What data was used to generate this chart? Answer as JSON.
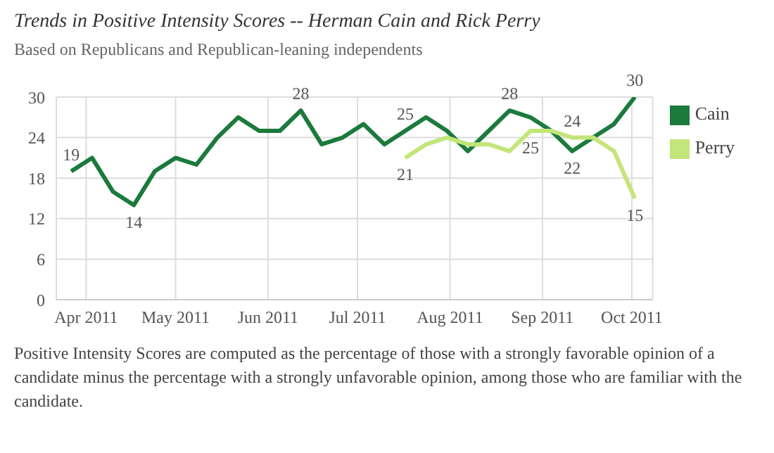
{
  "chart_data": {
    "type": "line",
    "title": "Trends in Positive Intensity Scores -- Herman Cain and Rick Perry",
    "subtitle": "Based on Republicans and Republican-leaning independents",
    "x": [
      "2011-03-27",
      "2011-04-03",
      "2011-04-10",
      "2011-04-17",
      "2011-04-24",
      "2011-05-01",
      "2011-05-08",
      "2011-05-15",
      "2011-05-22",
      "2011-05-29",
      "2011-06-05",
      "2011-06-12",
      "2011-06-19",
      "2011-06-26",
      "2011-07-03",
      "2011-07-10",
      "2011-07-17",
      "2011-07-24",
      "2011-07-31",
      "2011-08-07",
      "2011-08-14",
      "2011-08-21",
      "2011-08-28",
      "2011-09-04",
      "2011-09-11",
      "2011-09-18",
      "2011-09-25",
      "2011-10-02"
    ],
    "series": [
      {
        "name": "Cain",
        "color": "#1b7a3c",
        "values": [
          19,
          21,
          16,
          14,
          19,
          21,
          20,
          24,
          27,
          25,
          25,
          28,
          23,
          24,
          26,
          23,
          25,
          27,
          25,
          22,
          25,
          28,
          27,
          25,
          22,
          24,
          26,
          30
        ],
        "value_labels": [
          "19",
          null,
          null,
          "14",
          null,
          null,
          null,
          null,
          null,
          null,
          null,
          "28",
          null,
          null,
          null,
          null,
          "25",
          null,
          null,
          null,
          null,
          "28",
          null,
          null,
          "22",
          null,
          null,
          "30"
        ]
      },
      {
        "name": "Perry",
        "color": "#c3e57a",
        "values": [
          null,
          null,
          null,
          null,
          null,
          null,
          null,
          null,
          null,
          null,
          null,
          null,
          null,
          null,
          null,
          null,
          21,
          23,
          24,
          23,
          23,
          22,
          25,
          25,
          24,
          24,
          22,
          15
        ],
        "value_labels": [
          null,
          null,
          null,
          null,
          null,
          null,
          null,
          null,
          null,
          null,
          null,
          null,
          null,
          null,
          null,
          null,
          "21",
          null,
          null,
          null,
          null,
          null,
          "25",
          null,
          "24",
          null,
          null,
          "15"
        ]
      }
    ],
    "xlim": [
      "2011-03-22",
      "2011-10-08"
    ],
    "xticks": [
      {
        "value": "2011-04-01",
        "label": "Apr 2011"
      },
      {
        "value": "2011-05-01",
        "label": "May 2011"
      },
      {
        "value": "2011-06-01",
        "label": "Jun 2011"
      },
      {
        "value": "2011-07-01",
        "label": "Jul 2011"
      },
      {
        "value": "2011-08-01",
        "label": "Aug 2011"
      },
      {
        "value": "2011-09-01",
        "label": "Sep 2011"
      },
      {
        "value": "2011-10-01",
        "label": "Oct 2011"
      }
    ],
    "ylim": [
      0,
      30
    ],
    "yticks": [
      0,
      6,
      12,
      18,
      24,
      30
    ],
    "grid": true,
    "legend": "right",
    "annotations": [
      "Positive Intensity Scores are computed as the percentage of those with a strongly favorable opinion of a candidate minus the percentage with a strongly unfavorable opinion, among those who are familiar with the candidate."
    ]
  }
}
